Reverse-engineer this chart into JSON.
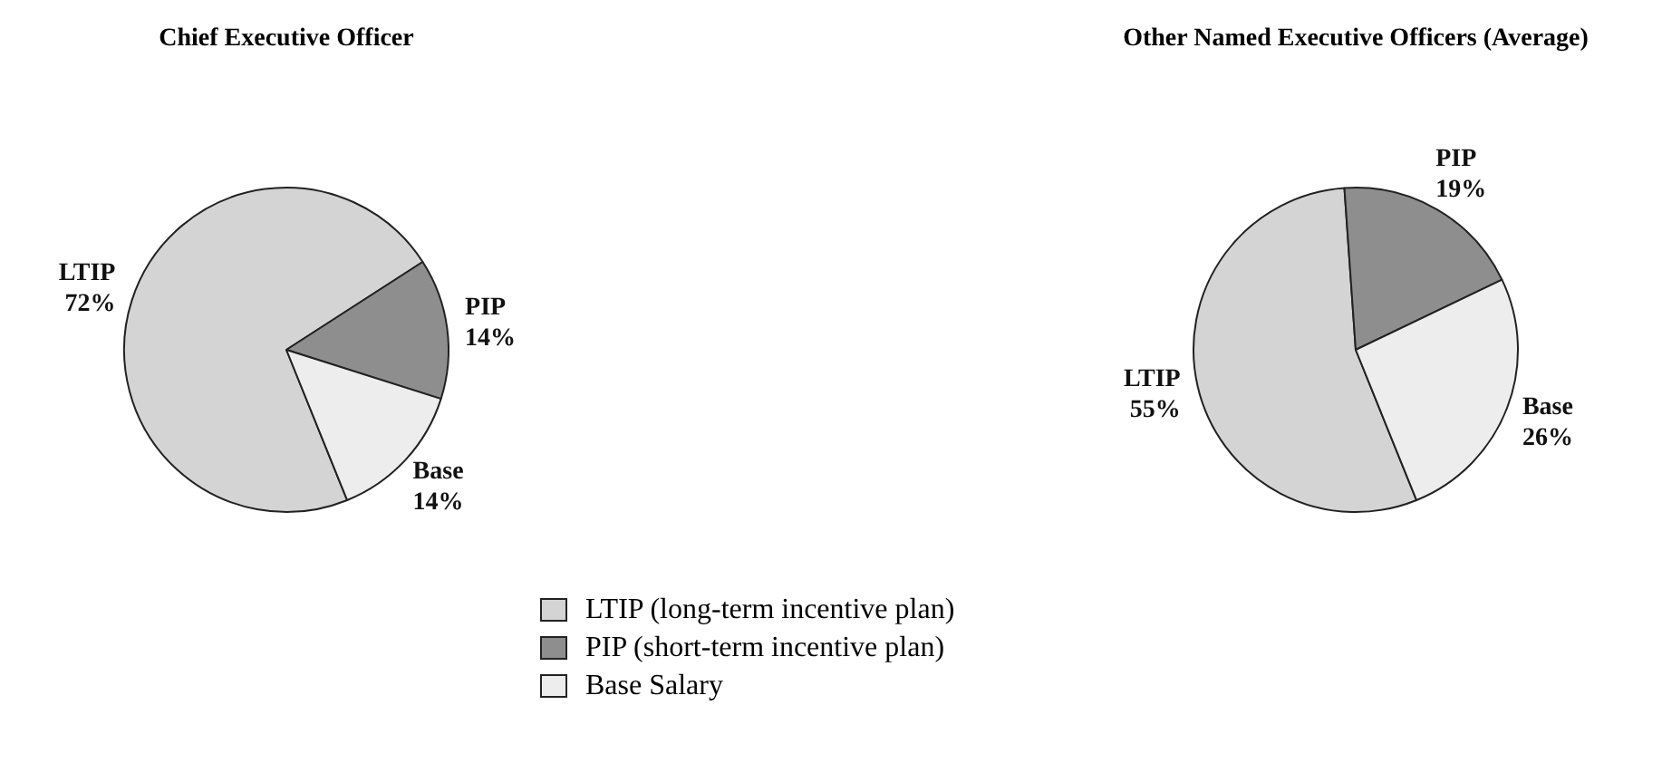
{
  "chart_data": [
    {
      "type": "pie",
      "title": "Chief Executive Officer",
      "categories": [
        "LTIP",
        "PIP",
        "Base"
      ],
      "values": [
        72,
        14,
        14
      ],
      "value_labels": [
        "72%",
        "14%",
        "14%"
      ],
      "colors": [
        "#d4d4d4",
        "#8e8e8e",
        "#ededed"
      ]
    },
    {
      "type": "pie",
      "title": "Other Named Executive Officers (Average)",
      "categories": [
        "LTIP",
        "PIP",
        "Base"
      ],
      "values": [
        55,
        19,
        26
      ],
      "value_labels": [
        "55%",
        "19%",
        "26%"
      ],
      "colors": [
        "#d4d4d4",
        "#8e8e8e",
        "#ededed"
      ]
    },
    {
      "type": "other",
      "categories": [
        "LTIP (long-term incentive plan)",
        "PIP (short-term incentive plan)",
        "Base Salary"
      ],
      "colors": [
        "#d4d4d4",
        "#8e8e8e",
        "#ededed"
      ]
    }
  ]
}
